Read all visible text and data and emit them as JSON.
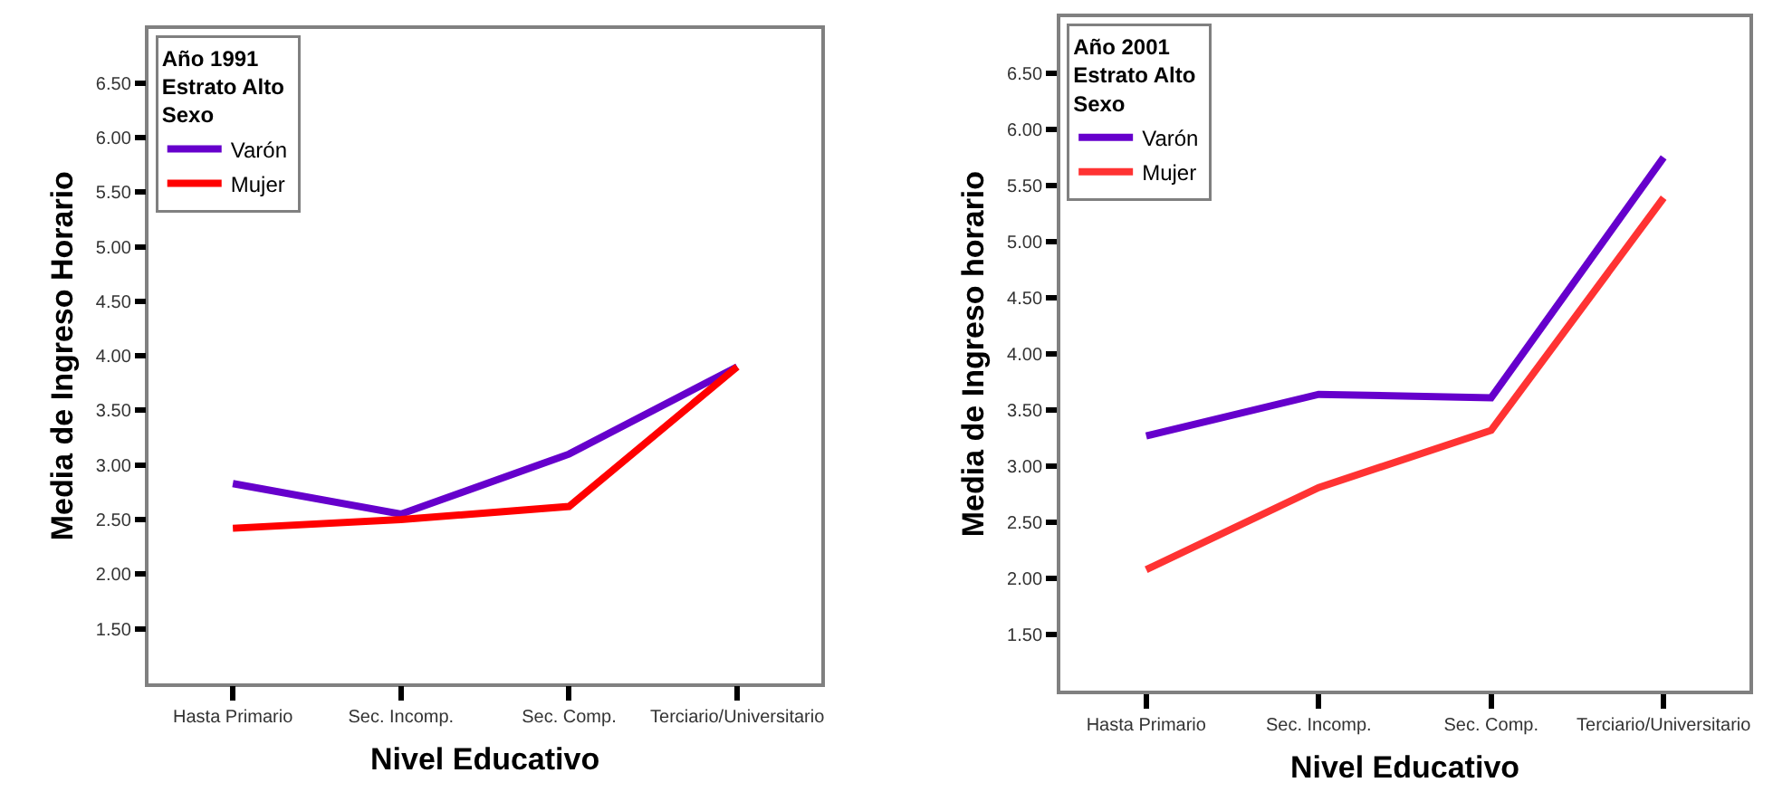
{
  "chart_data": [
    {
      "type": "line",
      "legend_title": "Año 1991\nEstrato Alto\nSexo",
      "xlabel": "Nivel Educativo",
      "ylabel": "Media de Ingreso Horario",
      "categories": [
        "Hasta Primario",
        "Sec. Incomp.",
        "Sec. Comp.",
        "Terciario/Universitario"
      ],
      "series": [
        {
          "name": "Varón",
          "color": "#6600cc",
          "values": [
            2.83,
            2.55,
            3.1,
            3.9
          ]
        },
        {
          "name": "Mujer",
          "color": "#ff0000",
          "values": [
            2.42,
            2.5,
            2.62,
            3.9
          ]
        }
      ],
      "ylim": [
        1.0,
        7.0
      ],
      "yticks": [
        {
          "value": 1.5,
          "label": "1.50"
        },
        {
          "value": 2.0,
          "label": "2.00"
        },
        {
          "value": 2.5,
          "label": "2.50"
        },
        {
          "value": 3.0,
          "label": "3.00"
        },
        {
          "value": 3.5,
          "label": "3.50"
        },
        {
          "value": 4.0,
          "label": "4.00"
        },
        {
          "value": 4.5,
          "label": "4.50"
        },
        {
          "value": 5.0,
          "label": "5.00"
        },
        {
          "value": 5.5,
          "label": "5.50"
        },
        {
          "value": 6.0,
          "label": "6.00"
        },
        {
          "value": 6.5,
          "label": "6.50"
        }
      ],
      "legend": "top left",
      "line_style": "solid"
    },
    {
      "type": "line",
      "legend_title": "Año 2001\nEstrato Alto\nSexo",
      "xlabel": "Nivel Educativo",
      "ylabel": "Media de Ingreso horario",
      "categories": [
        "Hasta Primario",
        "Sec. Incomp.",
        "Sec. Comp.",
        "Terciario/Universitario"
      ],
      "series": [
        {
          "name": "Varón",
          "color": "#6600cc",
          "values": [
            3.27,
            3.64,
            3.61,
            5.75
          ]
        },
        {
          "name": "Mujer",
          "color": "#ff3333",
          "values": [
            2.08,
            2.81,
            3.32,
            5.39
          ]
        }
      ],
      "ylim": [
        1.0,
        7.0
      ],
      "yticks": [
        {
          "value": 1.5,
          "label": "1.50"
        },
        {
          "value": 2.0,
          "label": "2.00"
        },
        {
          "value": 2.5,
          "label": "2.50"
        },
        {
          "value": 3.0,
          "label": "3.00"
        },
        {
          "value": 3.5,
          "label": "3.50"
        },
        {
          "value": 4.0,
          "label": "4.00"
        },
        {
          "value": 4.5,
          "label": "4.50"
        },
        {
          "value": 5.0,
          "label": "5.00"
        },
        {
          "value": 5.5,
          "label": "5.50"
        },
        {
          "value": 6.0,
          "label": "6.00"
        },
        {
          "value": 6.5,
          "label": "6.50"
        }
      ],
      "legend": "top left",
      "line_style": "solid"
    }
  ]
}
